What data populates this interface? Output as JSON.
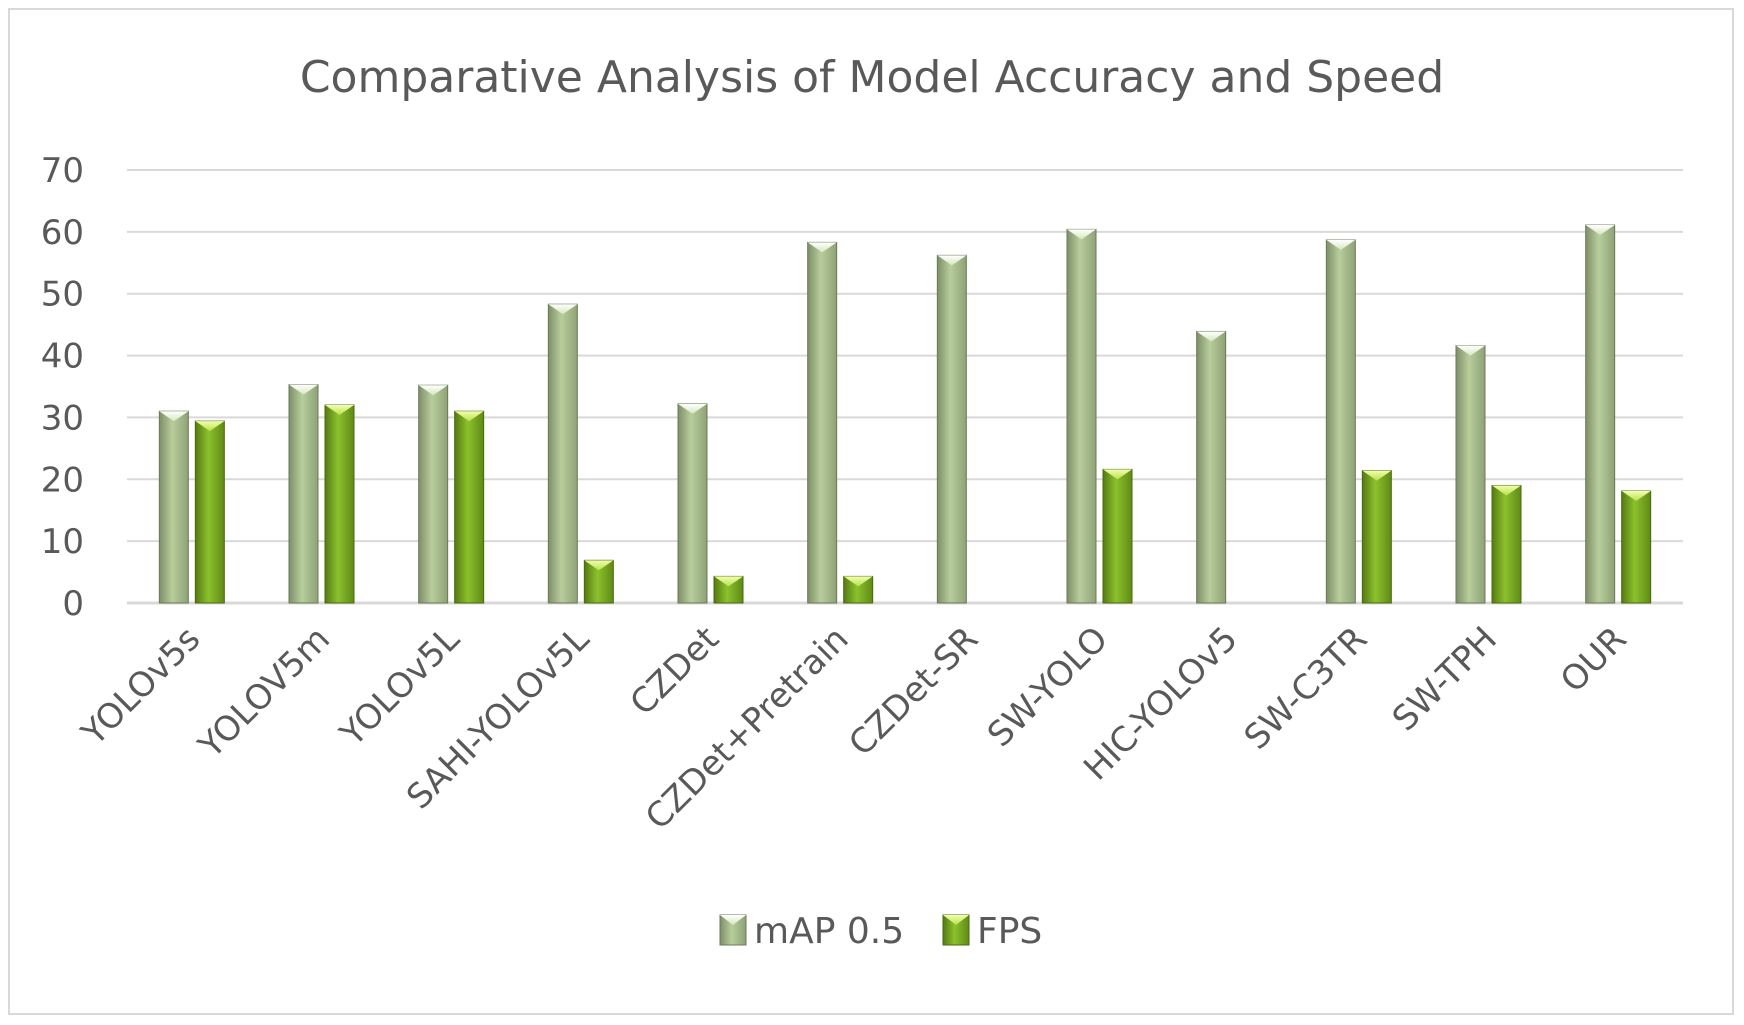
{
  "chart_data": {
    "type": "bar",
    "title": "Comparative Analysis of Model Accuracy and Speed",
    "categories": [
      "YOLOv5s",
      "YOLOV5m",
      "YOLOv5L",
      "SAHI-YOLOv5L",
      "CZDet",
      "CZDet+Pretrain",
      "CZDet-SR",
      "SW-YOLO",
      "HIC-YOLOv5",
      "SW-C3TR",
      "SW-TPH",
      "OUR"
    ],
    "series": [
      {
        "name": "mAP 0.5",
        "values": [
          31,
          35.3,
          35.2,
          48.3,
          32.2,
          58.3,
          56.2,
          60.4,
          43.9,
          58.7,
          41.6,
          61.1
        ],
        "color": "#a9c08c"
      },
      {
        "name": "FPS",
        "values": [
          29.4,
          32,
          31,
          6.9,
          4.3,
          4.3,
          0,
          21.6,
          0,
          21.4,
          19,
          18.1
        ],
        "color": "#6e9a1e"
      }
    ],
    "xlabel": "",
    "ylabel": "",
    "ylim": [
      0,
      70
    ],
    "yticks": [
      0,
      10,
      20,
      30,
      40,
      50,
      60,
      70
    ],
    "grid": true,
    "legend_position": "bottom"
  }
}
